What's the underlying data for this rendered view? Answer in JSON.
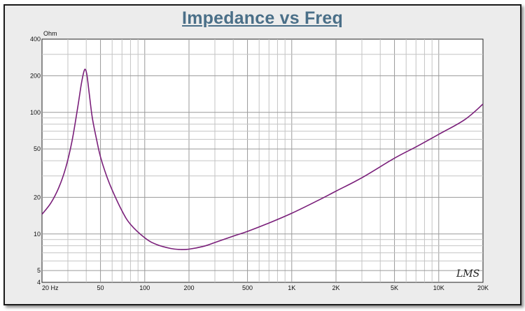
{
  "chart_data": {
    "type": "line",
    "title": "Impedance vs Freq",
    "ylabel": "Ohm",
    "xlabel": "",
    "x_scale": "log",
    "y_scale": "log",
    "xlim": [
      20,
      20000
    ],
    "ylim": [
      4,
      400
    ],
    "grid": true,
    "x_tick_labels": [
      {
        "v": 20,
        "label": "20  Hz"
      },
      {
        "v": 50,
        "label": "50"
      },
      {
        "v": 100,
        "label": "100"
      },
      {
        "v": 200,
        "label": "200"
      },
      {
        "v": 500,
        "label": "500"
      },
      {
        "v": 1000,
        "label": "1K"
      },
      {
        "v": 2000,
        "label": "2K"
      },
      {
        "v": 5000,
        "label": "5K"
      },
      {
        "v": 10000,
        "label": "10K"
      },
      {
        "v": 20000,
        "label": "20K"
      }
    ],
    "y_tick_labels": [
      {
        "v": 400,
        "label": "400"
      },
      {
        "v": 200,
        "label": "200"
      },
      {
        "v": 100,
        "label": "100"
      },
      {
        "v": 50,
        "label": "50"
      },
      {
        "v": 20,
        "label": "20"
      },
      {
        "v": 10,
        "label": "10"
      },
      {
        "v": 5,
        "label": "5"
      },
      {
        "v": 4,
        "label": "4"
      }
    ],
    "series": [
      {
        "color": "#7a1f7a",
        "x": [
          20,
          23,
          26,
          29,
          32,
          35,
          37,
          38.5,
          39.5,
          40.5,
          42,
          44,
          47,
          50,
          55,
          60,
          70,
          80,
          100,
          120,
          150,
          175,
          200,
          250,
          300,
          400,
          500,
          700,
          1000,
          1500,
          2000,
          3000,
          5000,
          7000,
          10000,
          15000,
          20000
        ],
        "y": [
          14.5,
          18,
          24,
          35,
          58,
          110,
          170,
          215,
          225,
          200,
          140,
          90,
          60,
          43,
          30,
          23,
          15.5,
          12,
          9.3,
          8.2,
          7.6,
          7.45,
          7.5,
          7.9,
          8.5,
          9.6,
          10.5,
          12.3,
          14.8,
          18.8,
          22.5,
          29,
          42,
          52,
          66,
          87,
          117
        ]
      }
    ]
  },
  "watermark": "LMS"
}
